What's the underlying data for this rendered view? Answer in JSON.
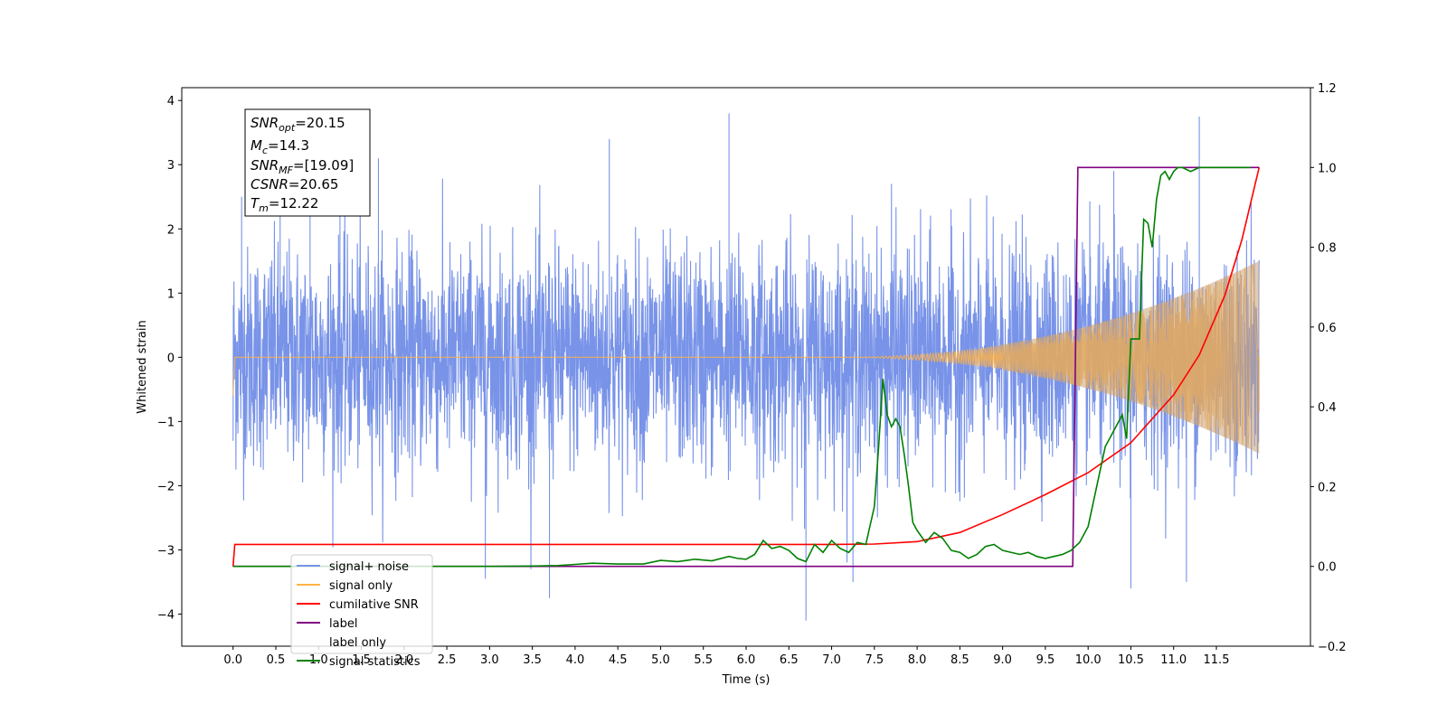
{
  "chart_data": {
    "type": "line",
    "xlabel": "Time (s)",
    "ylabel_left": "Whitened strain",
    "ylabel_right": "",
    "xlim": [
      -0.6,
      12.6
    ],
    "ylim_left": [
      -4.5,
      4.2
    ],
    "ylim_right": [
      -0.2,
      1.2
    ],
    "x_ticks": [
      "0.0",
      "0.5",
      "1.0",
      "1.5",
      "2.0",
      "2.5",
      "3.0",
      "3.5",
      "4.0",
      "4.5",
      "5.0",
      "5.5",
      "6.0",
      "6.5",
      "7.0",
      "7.5",
      "8.0",
      "8.5",
      "9.0",
      "9.5",
      "10.0",
      "10.5",
      "11.0",
      "11.5"
    ],
    "y_ticks_left": [
      "−4",
      "−3",
      "−2",
      "−1",
      "0",
      "1",
      "2",
      "3",
      "4"
    ],
    "y_ticks_right": [
      "−0.2",
      "0.0",
      "0.2",
      "0.4",
      "0.6",
      "0.8",
      "1.0",
      "1.2"
    ],
    "grid": false,
    "legend_position": "bottom-left",
    "annotation": [
      {
        "base": "SNR",
        "sub": "opt",
        "value": "=20.15"
      },
      {
        "base": "M",
        "sub": "c",
        "value": "=14.3"
      },
      {
        "base": "SNR",
        "sub": "MF",
        "value": "=[19.09]"
      },
      {
        "base": "CSNR",
        "sub": "",
        "value": "=20.65"
      },
      {
        "base": "T",
        "sub": "m",
        "value": "=12.22"
      }
    ],
    "series": [
      {
        "name": "signal+ noise",
        "axis": "left",
        "color": "#7893e8",
        "description_values": {
          "noise_std": 0.85,
          "duration_s": 12.0
        },
        "spikes": [
          [
            0.1,
            2.5
          ],
          [
            0.55,
            3.05
          ],
          [
            0.9,
            3.2
          ],
          [
            1.25,
            3.1
          ],
          [
            1.7,
            3.1
          ],
          [
            2.95,
            -3.45
          ],
          [
            3.7,
            -3.75
          ],
          [
            4.4,
            3.4
          ],
          [
            5.8,
            3.8
          ],
          [
            6.7,
            -4.1
          ],
          [
            7.25,
            -3.5
          ],
          [
            7.7,
            2.7
          ],
          [
            10.3,
            2.9
          ],
          [
            10.5,
            -3.6
          ],
          [
            11.3,
            3.75
          ],
          [
            11.15,
            -3.5
          ]
        ]
      },
      {
        "name": "signal only",
        "axis": "left",
        "color": "#ffb347",
        "description_values": {
          "merger_time_s": 12.0,
          "final_amplitude": 1.5
        }
      },
      {
        "name": "cumilative SNR",
        "axis": "right",
        "color": "#ff0000",
        "x": [
          0.0,
          0.02,
          1.0,
          3.0,
          5.0,
          7.0,
          7.5,
          8.0,
          8.5,
          9.0,
          9.5,
          10.0,
          10.5,
          11.0,
          11.3,
          11.6,
          11.8,
          12.0
        ],
        "values": [
          0.0,
          0.055,
          0.055,
          0.055,
          0.055,
          0.055,
          0.056,
          0.062,
          0.085,
          0.13,
          0.18,
          0.235,
          0.31,
          0.43,
          0.53,
          0.68,
          0.82,
          1.0
        ]
      },
      {
        "name": "label",
        "axis": "right",
        "color": "#800080",
        "x": [
          0.0,
          9.82,
          9.88,
          12.0
        ],
        "values": [
          0.0,
          0.0,
          1.0,
          1.0
        ]
      },
      {
        "name": "label only",
        "axis": "right",
        "color": "#ffffff",
        "x": [],
        "values": []
      },
      {
        "name": "signal statistics",
        "axis": "right",
        "color": "#008000",
        "x": [
          0.0,
          0.5,
          1.0,
          1.5,
          2.0,
          2.5,
          3.0,
          3.5,
          3.8,
          4.0,
          4.2,
          4.5,
          4.8,
          5.0,
          5.2,
          5.4,
          5.6,
          5.8,
          5.9,
          6.0,
          6.1,
          6.2,
          6.3,
          6.4,
          6.5,
          6.6,
          6.7,
          6.8,
          6.9,
          7.0,
          7.1,
          7.2,
          7.3,
          7.4,
          7.5,
          7.55,
          7.6,
          7.65,
          7.7,
          7.75,
          7.8,
          7.85,
          7.9,
          7.95,
          8.0,
          8.1,
          8.2,
          8.3,
          8.4,
          8.5,
          8.6,
          8.7,
          8.8,
          8.9,
          9.0,
          9.1,
          9.2,
          9.3,
          9.4,
          9.5,
          9.6,
          9.7,
          9.8,
          9.9,
          10.0,
          10.1,
          10.2,
          10.3,
          10.4,
          10.45,
          10.5,
          10.6,
          10.65,
          10.7,
          10.75,
          10.8,
          10.85,
          10.9,
          10.95,
          11.0,
          11.05,
          11.1,
          11.2,
          11.3,
          11.5,
          11.7,
          11.9
        ],
        "values": [
          0.0,
          0.0,
          0.0,
          0.0,
          0.0,
          0.0,
          0.0,
          0.001,
          0.002,
          0.005,
          0.008,
          0.006,
          0.006,
          0.015,
          0.012,
          0.018,
          0.014,
          0.025,
          0.02,
          0.018,
          0.03,
          0.065,
          0.045,
          0.05,
          0.04,
          0.02,
          0.012,
          0.055,
          0.035,
          0.065,
          0.045,
          0.035,
          0.06,
          0.055,
          0.15,
          0.3,
          0.47,
          0.38,
          0.35,
          0.37,
          0.35,
          0.28,
          0.2,
          0.11,
          0.09,
          0.06,
          0.085,
          0.07,
          0.04,
          0.035,
          0.02,
          0.03,
          0.05,
          0.055,
          0.04,
          0.035,
          0.03,
          0.035,
          0.025,
          0.02,
          0.025,
          0.03,
          0.04,
          0.06,
          0.1,
          0.2,
          0.3,
          0.34,
          0.38,
          0.32,
          0.57,
          0.57,
          0.87,
          0.86,
          0.8,
          0.92,
          0.98,
          0.99,
          0.97,
          0.99,
          1.0,
          1.0,
          0.99,
          1.0,
          1.0,
          1.0,
          1.0
        ]
      }
    ]
  },
  "legend": [
    {
      "label": "signal+ noise",
      "color": "#7893e8"
    },
    {
      "label": "signal only",
      "color": "#ffb347"
    },
    {
      "label": "cumilative SNR",
      "color": "#ff0000"
    },
    {
      "label": "label",
      "color": "#800080"
    },
    {
      "label": "label only",
      "color": "#ffffff"
    },
    {
      "label": "signal statistics",
      "color": "#008000"
    }
  ]
}
